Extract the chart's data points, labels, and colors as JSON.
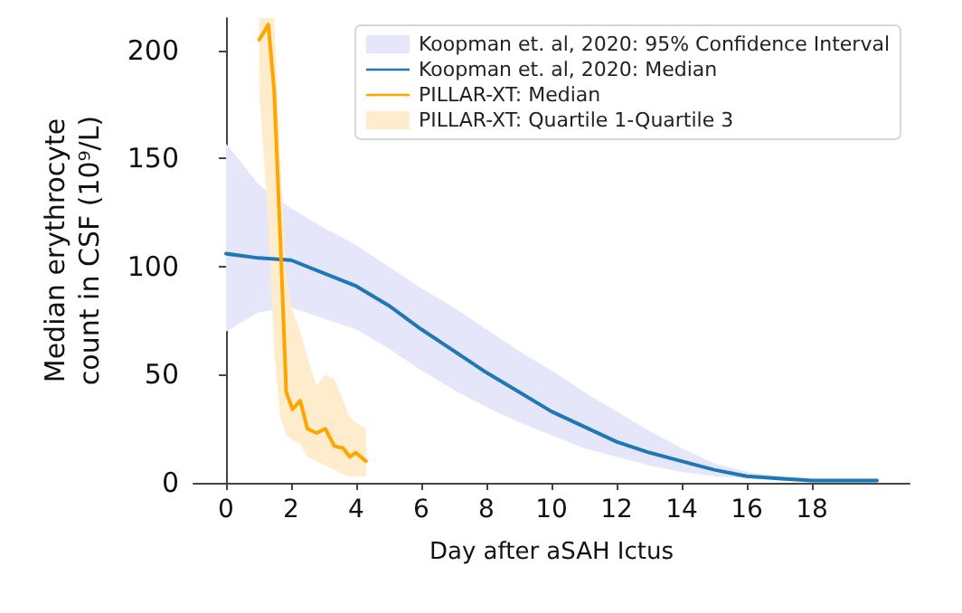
{
  "chart_data": {
    "type": "line",
    "xlabel": "Day after aSAH Ictus",
    "ylabel": "Median erythrocyte\ncount in CSF (10⁹/L)",
    "xlim": [
      -1,
      21
    ],
    "ylim": [
      0,
      215
    ],
    "xticks": [
      0,
      2,
      4,
      6,
      8,
      10,
      12,
      14,
      16,
      18
    ],
    "yticks": [
      0,
      50,
      100,
      150,
      200
    ],
    "legend": "top right",
    "marker": "none",
    "series": [
      {
        "type": "area",
        "name": "Koopman et. al, 2020: 95% Confidence Interval",
        "color": "#e6e6fa",
        "x": [
          0,
          1,
          2,
          3,
          4,
          5,
          6,
          7,
          8,
          9,
          10,
          11,
          12,
          13,
          14,
          15,
          16,
          17,
          18,
          19,
          20
        ],
        "values": [
          null,
          null,
          null,
          null,
          null,
          null,
          null,
          null,
          null,
          null,
          null,
          null,
          null,
          null,
          null,
          null,
          null,
          null,
          null,
          null,
          null
        ],
        "lower": [
          70,
          79,
          81,
          76,
          71,
          62,
          52,
          43,
          35,
          28,
          22,
          16,
          12,
          8,
          5,
          3,
          2,
          1,
          0,
          0,
          0
        ],
        "upper": [
          157,
          138,
          127,
          118,
          110,
          100,
          90,
          81,
          71,
          61,
          52,
          42,
          33,
          24,
          16,
          9,
          5,
          3,
          2,
          2,
          2
        ]
      },
      {
        "type": "line",
        "name": "Koopman et. al, 2020: Median",
        "color": "#1f77b4",
        "x": [
          0,
          1,
          2,
          3,
          4,
          5,
          6,
          7,
          8,
          9,
          10,
          11,
          12,
          13,
          14,
          15,
          16,
          17,
          18,
          19,
          20
        ],
        "values": [
          106,
          104,
          103,
          97,
          91,
          82,
          71,
          61,
          51,
          42,
          33,
          26,
          19,
          14,
          10,
          6,
          3,
          2,
          1,
          1,
          1
        ]
      },
      {
        "name": "PILLAR-XT: Median",
        "color": "#ffa500",
        "x": [
          1.02,
          1.3,
          1.48,
          1.67,
          1.85,
          2.04,
          2.28,
          2.5,
          2.78,
          3.05,
          3.33,
          3.6,
          3.8,
          3.98,
          4.3
        ],
        "values": [
          205,
          212,
          181,
          112,
          42,
          34,
          38,
          25,
          23,
          25,
          17,
          16,
          12,
          14,
          10
        ]
      },
      {
        "type": "area",
        "name": "PILLAR-XT: Quartile 1-Quartile 3",
        "color": "#ffeccc",
        "x": [
          1.02,
          1.3,
          1.48,
          1.67,
          1.85,
          2.04,
          2.28,
          2.5,
          2.78,
          3.05,
          3.33,
          3.6,
          3.8,
          3.98,
          4.3
        ],
        "values": [
          null,
          null,
          null,
          null,
          null,
          null,
          null,
          null,
          null,
          null,
          null,
          null,
          null,
          null,
          null
        ],
        "lower": [
          180,
          120,
          60,
          30,
          22,
          20,
          18,
          12,
          10,
          8,
          6,
          4,
          3,
          3,
          3
        ],
        "upper": [
          215,
          215,
          215,
          150,
          95,
          80,
          70,
          58,
          45,
          50,
          48,
          38,
          30,
          28,
          25
        ]
      }
    ]
  }
}
